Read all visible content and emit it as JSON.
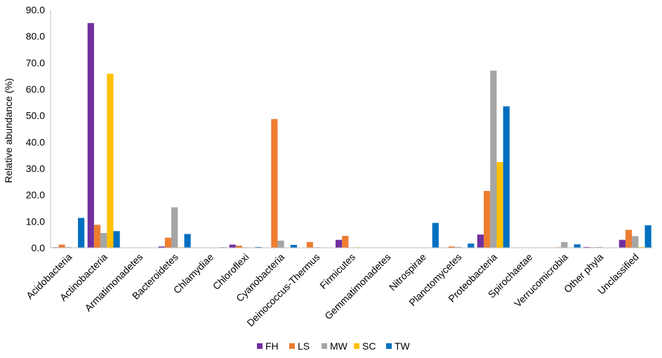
{
  "chart_data": {
    "type": "bar",
    "title": "",
    "xlabel": "",
    "ylabel": "Relative abundance (%)",
    "ylim": [
      0,
      90
    ],
    "yticks": [
      "0.0",
      "10.0",
      "20.0",
      "30.0",
      "40.0",
      "50.0",
      "60.0",
      "70.0",
      "80.0",
      "90.0"
    ],
    "grid": false,
    "legend_position": "bottom",
    "categories": [
      "Acidobacteria",
      "Actinobacteria",
      "Armatimonadetes",
      "Bacteroidetes",
      "Chlamydiae",
      "Chloroflexi",
      "Cyanobacteria",
      "Deinococcus-Thermus",
      "Firmicutes",
      "Gemmatimonadetes",
      "Nitrospirae",
      "Planctomycetes",
      "Proteobacteria",
      "Spirochaetae",
      "Verrucomicrobia",
      "Other phyla",
      "Unclassified"
    ],
    "series": [
      {
        "name": "FH",
        "color": "#7030a0",
        "values": [
          0.2,
          85.0,
          0.0,
          0.5,
          0.0,
          1.2,
          0.1,
          0.0,
          3.0,
          0.0,
          0.0,
          0.1,
          5.0,
          0.0,
          0.1,
          0.3,
          3.0
        ]
      },
      {
        "name": "LS",
        "color": "#ed7d31",
        "values": [
          1.2,
          8.7,
          0.0,
          3.8,
          0.0,
          0.8,
          48.7,
          2.2,
          4.5,
          0.0,
          0.0,
          0.5,
          21.5,
          0.0,
          0.2,
          0.2,
          6.8
        ]
      },
      {
        "name": "MW",
        "color": "#a5a5a5",
        "values": [
          0.3,
          5.6,
          0.0,
          15.3,
          0.1,
          0.2,
          2.7,
          0.2,
          0.1,
          0.0,
          0.0,
          0.3,
          67.0,
          0.0,
          2.2,
          0.3,
          4.4
        ]
      },
      {
        "name": "SC",
        "color": "#ffc000",
        "values": [
          0.1,
          65.8,
          0.0,
          0.2,
          0.0,
          0.1,
          0.1,
          0.1,
          0.2,
          0.0,
          0.0,
          0.1,
          32.4,
          0.0,
          0.1,
          0.1,
          0.3
        ]
      },
      {
        "name": "TW",
        "color": "#0070c0",
        "values": [
          11.3,
          6.3,
          0.0,
          5.2,
          0.2,
          0.3,
          1.1,
          0.0,
          0.1,
          0.0,
          9.4,
          1.6,
          53.5,
          0.0,
          1.3,
          0.1,
          8.5
        ]
      }
    ]
  }
}
